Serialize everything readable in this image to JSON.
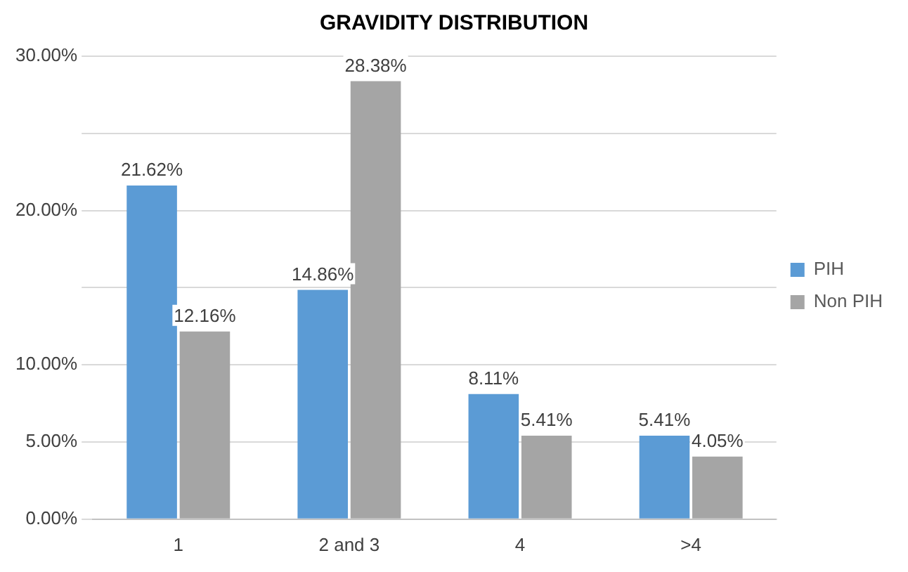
{
  "chart_data": {
    "type": "bar",
    "title": "GRAVIDITY DISTRIBUTION",
    "categories": [
      "1",
      "2 and 3",
      "4",
      ">4"
    ],
    "series": [
      {
        "name": "PIH",
        "color": "#5b9bd5",
        "values": [
          21.62,
          14.86,
          8.11,
          5.41
        ],
        "value_labels": [
          "21.62%",
          "14.86%",
          "8.11%",
          "5.41%"
        ]
      },
      {
        "name": "Non PIH",
        "color": "#a5a5a5",
        "values": [
          12.16,
          28.38,
          5.41,
          4.05
        ],
        "value_labels": [
          "12.16%",
          "28.38%",
          "5.41%",
          "4.05%"
        ]
      }
    ],
    "ylim": [
      0,
      30
    ],
    "yticks": [
      {
        "value": 0,
        "label": "0.00%"
      },
      {
        "value": 5,
        "label": "5.00%"
      },
      {
        "value": 10,
        "label": "10.00%"
      },
      {
        "value": 15,
        "label": null
      },
      {
        "value": 20,
        "label": "20.00%"
      },
      {
        "value": 25,
        "label": null
      },
      {
        "value": 30,
        "label": "30.00%"
      }
    ],
    "grid": "y",
    "legend": "right"
  }
}
